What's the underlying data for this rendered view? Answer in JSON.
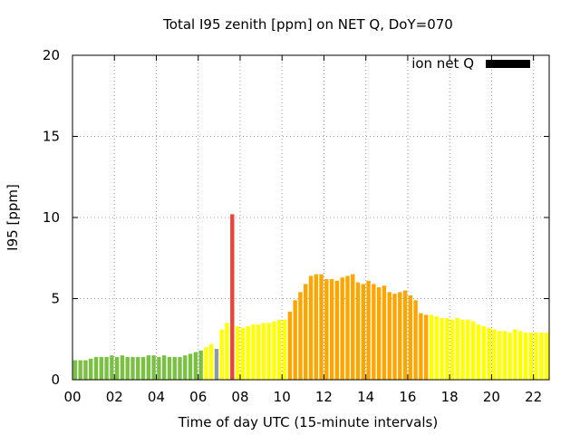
{
  "chart_data": {
    "type": "bar",
    "title": "Total I95 zenith [ppm] on NET Q, DoY=070",
    "xlabel": "Time of day UTC (15-minute intervals)",
    "ylabel": "I95 [ppm]",
    "ylim": [
      0,
      20
    ],
    "xlim": [
      0,
      22.75
    ],
    "yticks": [
      0,
      5,
      10,
      15,
      20
    ],
    "ytick_labels": [
      "0",
      "5",
      "10",
      "15",
      "20"
    ],
    "xticks": [
      0,
      2,
      4,
      6,
      8,
      10,
      12,
      14,
      16,
      18,
      20,
      22
    ],
    "xtick_labels": [
      "00",
      "02",
      "04",
      "06",
      "08",
      "10",
      "12",
      "14",
      "16",
      "18",
      "20",
      "22"
    ],
    "grid": true,
    "legend": {
      "position": "top-right",
      "entries": [
        {
          "label": "ion net Q",
          "color": "#000000"
        }
      ]
    },
    "colors": {
      "green": "#7ac143",
      "yellow": "#ffff00",
      "orange": "#ffa500",
      "red": "#e8453c",
      "gray": "#8c9ba5"
    },
    "bar_width_hours": 0.19,
    "series": [
      {
        "x": [
          0.125,
          0.375,
          0.625,
          0.875,
          1.125,
          1.375,
          1.625,
          1.875,
          2.125,
          2.375,
          2.625,
          2.875,
          3.125,
          3.375,
          3.625,
          3.875,
          4.125,
          4.375,
          4.625,
          4.875,
          5.125,
          5.375,
          5.625,
          5.875,
          6.125,
          6.375,
          6.625,
          6.875,
          7.125,
          7.375,
          7.625,
          7.875,
          8.125,
          8.375,
          8.625,
          8.875,
          9.125,
          9.375,
          9.625,
          9.875,
          10.125,
          10.375,
          10.625,
          10.875,
          11.125,
          11.375,
          11.625,
          11.875,
          12.125,
          12.375,
          12.625,
          12.875,
          13.125,
          13.375,
          13.625,
          13.875,
          14.125,
          14.375,
          14.625,
          14.875,
          15.125,
          15.375,
          15.625,
          15.875,
          16.125,
          16.375,
          16.625,
          16.875,
          17.125,
          17.375,
          17.625,
          17.875,
          18.125,
          18.375,
          18.625,
          18.875,
          19.125,
          19.375,
          19.625,
          19.875,
          20.125,
          20.375,
          20.625,
          20.875,
          21.125,
          21.375,
          21.625,
          21.875,
          22.125,
          22.375,
          22.625
        ],
        "values": [
          1.2,
          1.2,
          1.2,
          1.3,
          1.4,
          1.4,
          1.4,
          1.5,
          1.4,
          1.5,
          1.4,
          1.4,
          1.4,
          1.4,
          1.5,
          1.5,
          1.4,
          1.5,
          1.4,
          1.4,
          1.4,
          1.5,
          1.6,
          1.7,
          1.8,
          2.0,
          2.2,
          1.9,
          3.1,
          3.5,
          10.2,
          3.3,
          3.2,
          3.3,
          3.4,
          3.4,
          3.5,
          3.5,
          3.6,
          3.7,
          3.7,
          4.2,
          4.9,
          5.4,
          5.9,
          6.4,
          6.5,
          6.5,
          6.2,
          6.2,
          6.1,
          6.3,
          6.4,
          6.5,
          6.0,
          5.9,
          6.1,
          5.9,
          5.7,
          5.8,
          5.4,
          5.3,
          5.4,
          5.5,
          5.2,
          4.9,
          4.1,
          4.0,
          4.0,
          3.9,
          3.8,
          3.8,
          3.7,
          3.8,
          3.7,
          3.7,
          3.6,
          3.4,
          3.3,
          3.2,
          3.1,
          3.0,
          3.0,
          2.9,
          3.1,
          3.0,
          2.9,
          2.9,
          2.9,
          2.9,
          2.9
        ],
        "colors": [
          "green",
          "green",
          "green",
          "green",
          "green",
          "green",
          "green",
          "green",
          "green",
          "green",
          "green",
          "green",
          "green",
          "green",
          "green",
          "green",
          "green",
          "green",
          "green",
          "green",
          "green",
          "green",
          "green",
          "green",
          "green",
          "yellow",
          "yellow",
          "gray",
          "yellow",
          "yellow",
          "red",
          "yellow",
          "yellow",
          "yellow",
          "yellow",
          "yellow",
          "yellow",
          "yellow",
          "yellow",
          "yellow",
          "yellow",
          "orange",
          "orange",
          "orange",
          "orange",
          "orange",
          "orange",
          "orange",
          "orange",
          "orange",
          "orange",
          "orange",
          "orange",
          "orange",
          "orange",
          "orange",
          "orange",
          "orange",
          "orange",
          "orange",
          "orange",
          "orange",
          "orange",
          "orange",
          "orange",
          "orange",
          "orange",
          "orange",
          "yellow",
          "yellow",
          "yellow",
          "yellow",
          "yellow",
          "yellow",
          "yellow",
          "yellow",
          "yellow",
          "yellow",
          "yellow",
          "yellow",
          "yellow",
          "yellow",
          "yellow",
          "yellow",
          "yellow",
          "yellow",
          "yellow",
          "yellow",
          "yellow",
          "yellow",
          "yellow"
        ]
      }
    ]
  }
}
